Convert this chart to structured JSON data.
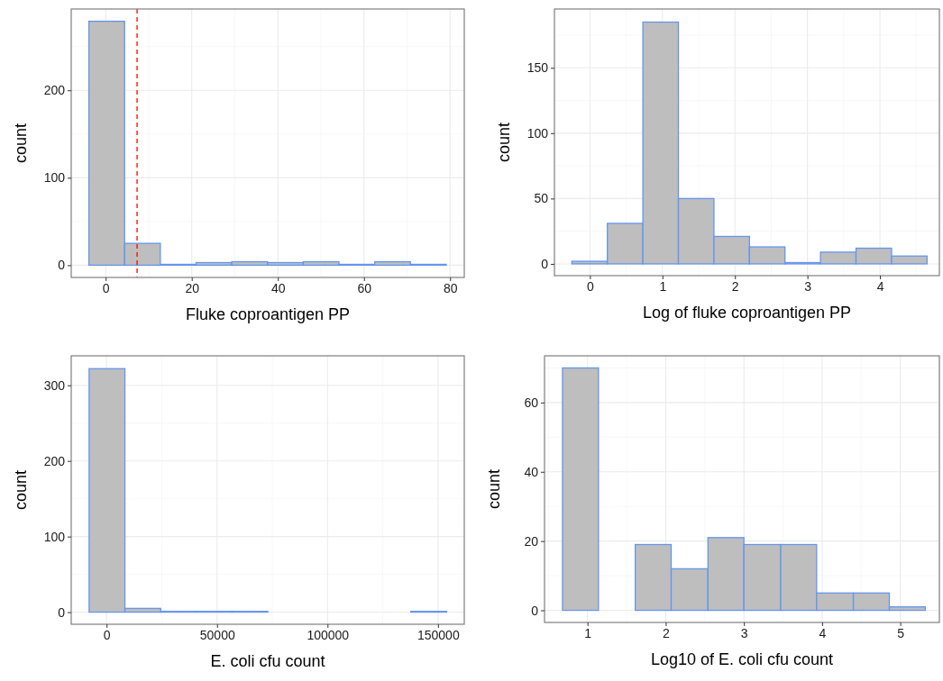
{
  "chart_data": [
    {
      "type": "histogram",
      "xlabel": "Fluke coproantigen PP",
      "ylabel": "count",
      "bins": [
        -3.9,
        4.4,
        12.7,
        21,
        29.3,
        37.6,
        45.9,
        54.2,
        62.5,
        70.8,
        79.1
      ],
      "values": [
        279,
        25,
        1,
        3,
        4,
        3,
        4,
        1,
        4,
        1
      ],
      "color": "#bebebe",
      "xlim": [
        -8,
        83.3
      ],
      "ylim": [
        -14,
        293
      ],
      "xticks": [
        0,
        20,
        40,
        60,
        80
      ],
      "yticks": [
        0,
        100,
        200
      ],
      "grid": true,
      "ref_lines": [
        {
          "axis": "x",
          "value": 7.3,
          "color": "#ff0000",
          "line_style": "dashed"
        }
      ]
    },
    {
      "type": "histogram",
      "xlabel": "Log of fluke coproantigen PP",
      "ylabel": "count",
      "bins": [
        -0.25,
        0.24,
        0.73,
        1.22,
        1.71,
        2.2,
        2.69,
        3.18,
        3.67,
        4.16,
        4.65
      ],
      "values": [
        2,
        31,
        185,
        50,
        21,
        13,
        1,
        9,
        12,
        6
      ],
      "color": "#bebebe",
      "xlim": [
        -0.49,
        4.82
      ],
      "ylim": [
        -9,
        195
      ],
      "xticks": [
        0,
        1,
        2,
        3,
        4
      ],
      "yticks": [
        0,
        50,
        100,
        150
      ],
      "grid": true
    },
    {
      "type": "histogram",
      "xlabel": "E. coli cfu count",
      "ylabel": "count",
      "bins": [
        -7900,
        8300,
        24500,
        40600,
        56800,
        73000,
        89200,
        105300,
        121500,
        137700,
        153900
      ],
      "values": [
        322,
        5,
        1,
        1,
        1,
        0,
        0,
        0,
        0,
        1
      ],
      "color": "#bebebe",
      "xlim": [
        -16000,
        161900
      ],
      "ylim": [
        -16,
        339
      ],
      "xticks": [
        0,
        50000,
        100000,
        150000
      ],
      "yticks": [
        0,
        100,
        200,
        300
      ],
      "grid": true
    },
    {
      "type": "histogram",
      "xlabel": "Log10 of E. coli cfu count",
      "ylabel": "count",
      "bins": [
        0.68,
        1.14,
        1.61,
        2.07,
        2.54,
        3.0,
        3.47,
        3.93,
        4.4,
        4.86,
        5.32
      ],
      "values": [
        70,
        0,
        19,
        12,
        21,
        19,
        19,
        5,
        5,
        1
      ],
      "color": "#bebebe",
      "xlim": [
        0.45,
        5.5
      ],
      "ylim": [
        -3.5,
        73.5
      ],
      "xticks": [
        1,
        2,
        3,
        4,
        5
      ],
      "yticks": [
        0,
        20,
        40,
        60
      ],
      "grid": true
    }
  ]
}
